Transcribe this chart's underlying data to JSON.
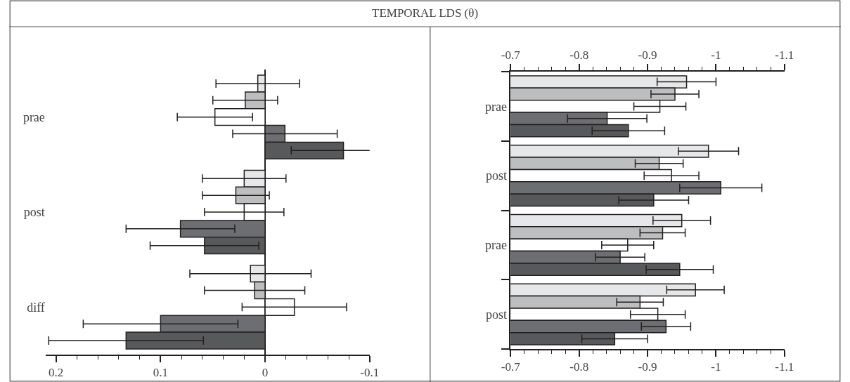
{
  "chart_data": [
    {
      "type": "bar",
      "orientation": "horizontal",
      "title": "TEMPORAL LDS (θ)",
      "categories": [
        "prae",
        "post",
        "diff"
      ],
      "xlim": [
        0.21,
        -0.1
      ],
      "xticks": [
        0.2,
        {
          "value": 0.18,
          "label": null
        },
        {
          "value": 0.16,
          "label": null
        },
        {
          "value": 0.14,
          "label": null
        },
        {
          "value": 0.12,
          "label": null
        },
        0.1,
        {
          "value": 0.08,
          "label": null
        },
        {
          "value": 0.06,
          "label": null
        },
        {
          "value": 0.04,
          "label": null
        },
        {
          "value": 0.02,
          "label": null
        },
        0,
        {
          "value": -0.02,
          "label": null
        },
        {
          "value": -0.04,
          "label": null
        },
        {
          "value": -0.06,
          "label": null
        },
        {
          "value": -0.08,
          "label": null
        },
        -0.1
      ],
      "series": [
        {
          "color": "#e6e7e8",
          "values": [
            0.007,
            0.02,
            0.014
          ],
          "errors": [
            0.04,
            0.04,
            0.058
          ]
        },
        {
          "color": "#bcbec0",
          "values": [
            0.019,
            0.028,
            0.01
          ],
          "errors": [
            0.031,
            0.032,
            0.048
          ]
        },
        {
          "color": "#ffffff",
          "values": [
            0.048,
            0.02,
            -0.028
          ],
          "errors": [
            0.036,
            0.038,
            0.05
          ]
        },
        {
          "color": "#6d6e71",
          "values": [
            -0.019,
            0.081,
            0.1
          ],
          "errors": [
            0.05,
            0.052,
            0.074
          ]
        },
        {
          "color": "#58595b",
          "values": [
            -0.075,
            0.058,
            0.133
          ],
          "errors": [
            0.05,
            0.052,
            0.074
          ]
        }
      ]
    },
    {
      "type": "bar",
      "orientation": "horizontal",
      "categories": [
        "prae",
        "post",
        "prae",
        "post"
      ],
      "xlim": [
        -0.7,
        -1.1
      ],
      "xticks": [
        -0.7,
        {
          "value": -0.72,
          "label": null
        },
        {
          "value": -0.74,
          "label": null
        },
        {
          "value": -0.76,
          "label": null
        },
        {
          "value": -0.78,
          "label": null
        },
        -0.8,
        {
          "value": -0.82,
          "label": null
        },
        {
          "value": -0.84,
          "label": null
        },
        {
          "value": -0.86,
          "label": null
        },
        {
          "value": -0.88,
          "label": null
        },
        -0.9,
        {
          "value": -0.92,
          "label": null
        },
        {
          "value": -0.94,
          "label": null
        },
        {
          "value": -0.96,
          "label": null
        },
        {
          "value": -0.98,
          "label": null
        },
        -1,
        {
          "value": -1.02,
          "label": null
        },
        {
          "value": -1.04,
          "label": null
        },
        {
          "value": -1.06,
          "label": null
        },
        {
          "value": -1.08,
          "label": null
        },
        -1.1
      ],
      "x2lim": [
        -0.7,
        -1.1
      ],
      "x2ticks": [
        -0.7,
        {
          "value": -0.72,
          "label": null
        },
        {
          "value": -0.74,
          "label": null
        },
        {
          "value": -0.76,
          "label": null
        },
        {
          "value": -0.78,
          "label": null
        },
        -0.8,
        {
          "value": -0.82,
          "label": null
        },
        {
          "value": -0.84,
          "label": null
        },
        {
          "value": -0.86,
          "label": null
        },
        {
          "value": -0.88,
          "label": null
        },
        -0.9,
        {
          "value": -0.92,
          "label": null
        },
        {
          "value": -0.94,
          "label": null
        },
        {
          "value": -0.96,
          "label": null
        },
        {
          "value": -0.98,
          "label": null
        },
        -1,
        {
          "value": -1.02,
          "label": null
        },
        {
          "value": -1.04,
          "label": null
        },
        {
          "value": -1.06,
          "label": null
        },
        {
          "value": -1.08,
          "label": null
        },
        -1.1
      ],
      "series": [
        {
          "color": "#e6e7e8",
          "values": [
            -0.957,
            -0.989,
            -0.95,
            -0.97
          ],
          "errors": [
            0.043,
            0.044,
            0.042,
            0.042
          ]
        },
        {
          "color": "#bcbec0",
          "values": [
            -0.94,
            -0.917,
            -0.922,
            -0.889
          ],
          "errors": [
            0.035,
            0.035,
            0.033,
            0.034
          ]
        },
        {
          "color": "#ffffff",
          "values": [
            -0.918,
            -0.935,
            -0.871,
            -0.915
          ],
          "errors": [
            0.038,
            0.04,
            0.038,
            0.04
          ]
        },
        {
          "color": "#6d6e71",
          "values": [
            -0.841,
            -1.007,
            -0.86,
            -0.927
          ],
          "errors": [
            0.058,
            0.06,
            0.036,
            0.036
          ]
        },
        {
          "color": "#58595b",
          "values": [
            -0.872,
            -0.909,
            -0.947,
            -0.852
          ],
          "errors": [
            0.053,
            0.051,
            0.049,
            0.048
          ]
        }
      ]
    }
  ]
}
